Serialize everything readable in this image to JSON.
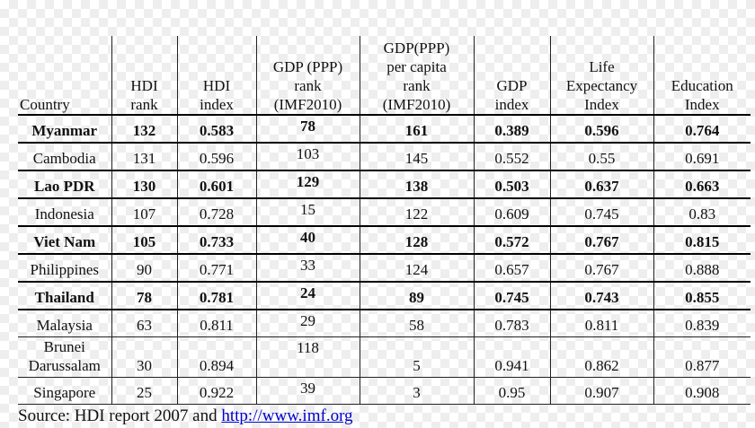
{
  "table": {
    "header": [
      "Country",
      "HDI\nrank",
      "HDI\nindex",
      "GDP (PPP)\nrank\n(IMF2010)",
      "GDP(PPP)\nper capita\nrank\n(IMF2010)",
      "GDP\nindex",
      "Life\nExpectancy\nIndex",
      "Education\nIndex"
    ],
    "rows": [
      [
        "Myanmar",
        "132",
        "0.583",
        "78",
        "161",
        "0.389",
        "0.596",
        "0.764"
      ],
      [
        "Cambodia",
        "131",
        "0.596",
        "103",
        "145",
        "0.552",
        "0.55",
        "0.691"
      ],
      [
        "Lao PDR",
        "130",
        "0.601",
        "129",
        "138",
        "0.503",
        "0.637",
        "0.663"
      ],
      [
        "Indonesia",
        "107",
        "0.728",
        "15",
        "122",
        "0.609",
        "0.745",
        "0.83"
      ],
      [
        "Viet Nam",
        "105",
        "0.733",
        "40",
        "128",
        "0.572",
        "0.767",
        "0.815"
      ],
      [
        "Philippines",
        "90",
        "0.771",
        "33",
        "124",
        "0.657",
        "0.767",
        "0.888"
      ],
      [
        "Thailand",
        "78",
        "0.781",
        "24",
        "89",
        "0.745",
        "0.743",
        "0.855"
      ],
      [
        "Malaysia",
        "63",
        "0.811",
        "29",
        "58",
        "0.783",
        "0.811",
        "0.839"
      ],
      [
        "Brunei\nDarussalam",
        "30",
        "0.894",
        "118",
        "5",
        "0.941",
        "0.862",
        "0.877"
      ],
      [
        "Singapore",
        "25",
        "0.922",
        "39",
        "3",
        "0.95",
        "0.907",
        "0.908"
      ]
    ],
    "bold_rows": [
      0,
      2,
      4,
      6
    ]
  },
  "source": {
    "text": "Source: HDI report 2007 and ",
    "link": "http://www.imf.org"
  }
}
